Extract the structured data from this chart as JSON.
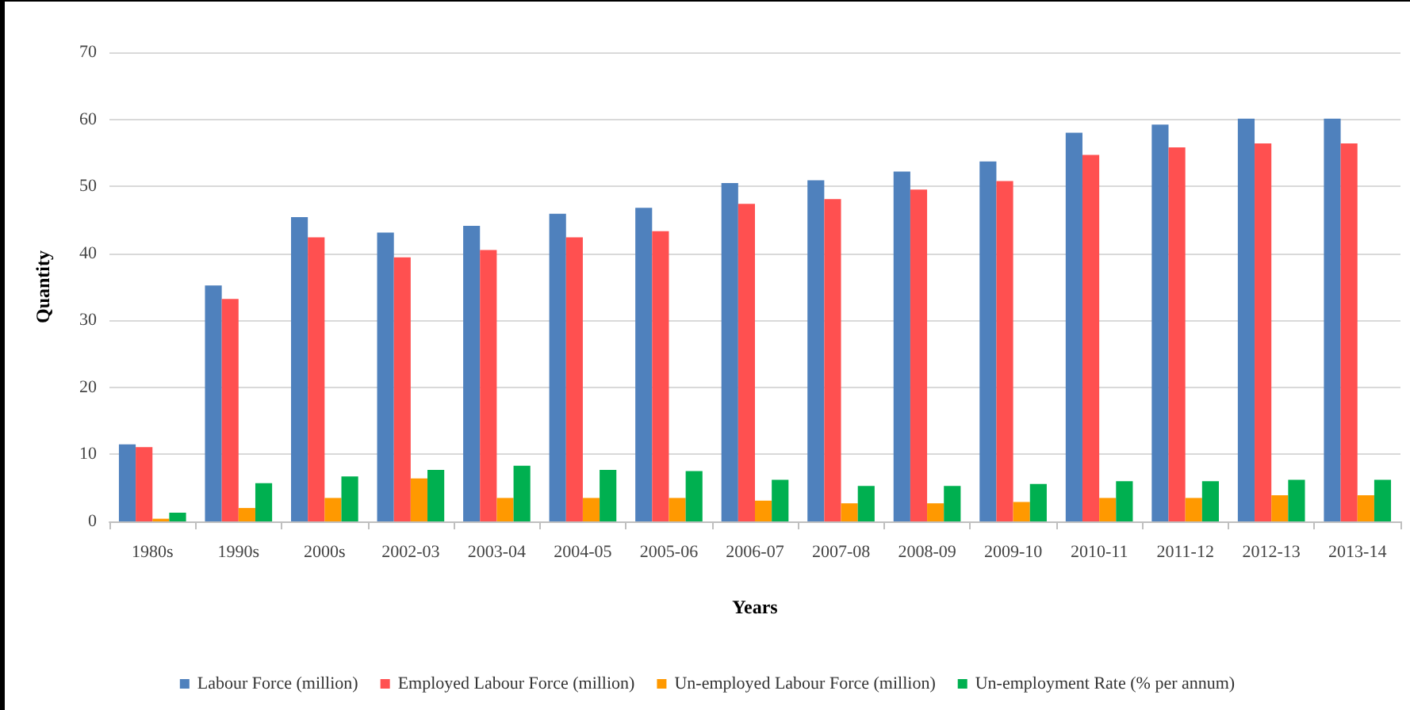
{
  "chart_data": {
    "type": "bar",
    "xlabel": "Years",
    "ylabel": "Quantity",
    "categories": [
      "1980s",
      "1990s",
      "2000s",
      "2002-03",
      "2003-04",
      "2004-05",
      "2005-06",
      "2006-07",
      "2007-08",
      "2008-09",
      "2009-10",
      "2010-11",
      "2011-12",
      "2012-13",
      "2013-14"
    ],
    "series": [
      {
        "name": "Labour Force (million)",
        "color": "#4f81bd",
        "values": [
          11.5,
          35.2,
          45.4,
          43.1,
          44.1,
          45.9,
          46.8,
          50.5,
          50.9,
          52.2,
          53.7,
          58.0,
          59.2,
          60.1,
          60.1
        ]
      },
      {
        "name": "Employed Labour Force (million)",
        "color": "#ff5050",
        "values": [
          11.1,
          33.2,
          42.4,
          39.4,
          40.5,
          42.4,
          43.3,
          47.4,
          48.1,
          49.5,
          50.8,
          54.7,
          55.8,
          56.4,
          56.4
        ]
      },
      {
        "name": "Un-employed Labour Force (million)",
        "color": "#ff9900",
        "values": [
          0.4,
          2.0,
          3.5,
          6.4,
          3.5,
          3.5,
          3.5,
          3.1,
          2.7,
          2.7,
          2.9,
          3.5,
          3.5,
          3.9,
          3.9
        ]
      },
      {
        "name": "Un-employment Rate (% per annum)",
        "color": "#00b050",
        "values": [
          1.3,
          5.7,
          6.7,
          7.7,
          8.3,
          7.7,
          7.5,
          6.2,
          5.3,
          5.3,
          5.6,
          6.0,
          6.0,
          6.2,
          6.2
        ]
      }
    ],
    "ylim": [
      0,
      70
    ],
    "yticks": [
      0,
      10,
      20,
      30,
      40,
      50,
      60,
      70
    ],
    "grid": "y",
    "legend": "bottom"
  }
}
